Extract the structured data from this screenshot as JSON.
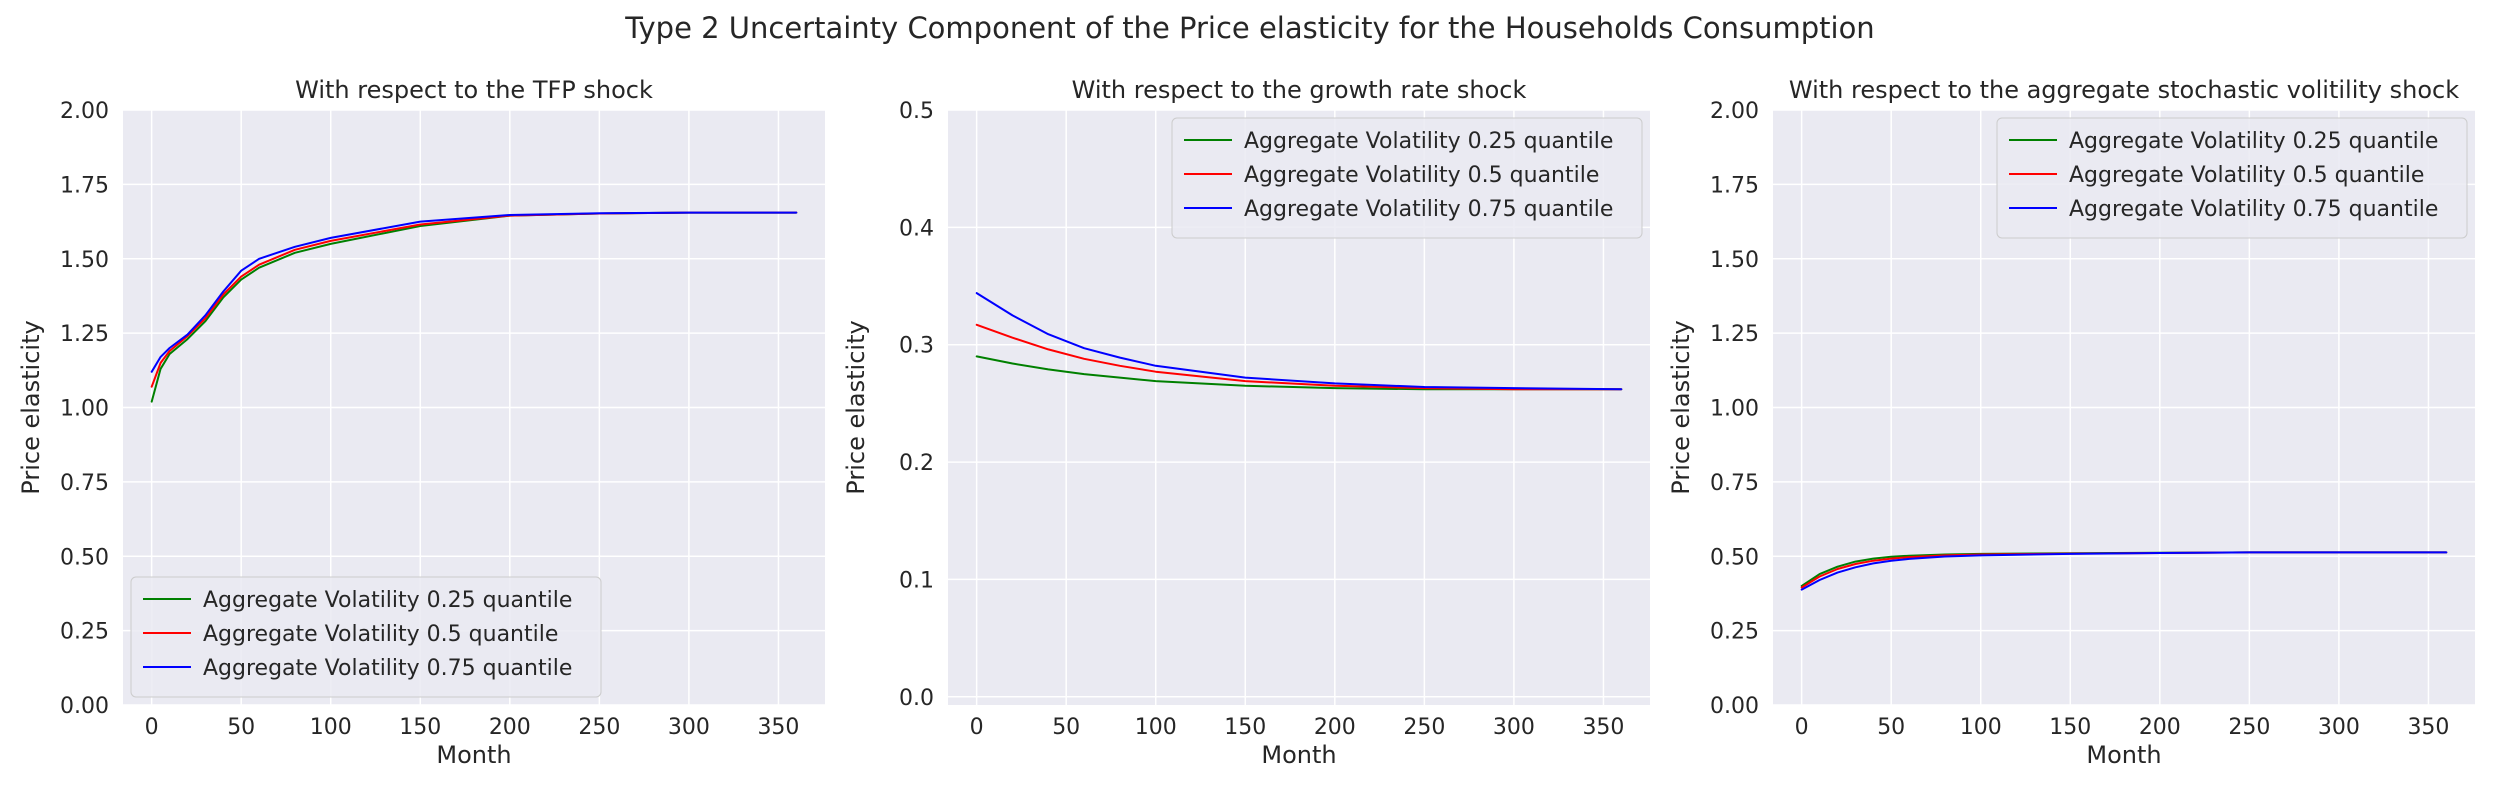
{
  "figure": {
    "suptitle": "Type 2 Uncertainty Component of the Price elasticity for the Households Consumption",
    "background": "#ffffff",
    "axes_background": "#eaeaf2",
    "grid_color": "#ffffff"
  },
  "chart_data": [
    {
      "type": "line",
      "title": "With respect to the TFP shock",
      "xlabel": "Month",
      "ylabel": "Price elasticity",
      "xlim": [
        -16,
        376
      ],
      "ylim": [
        0,
        2.0
      ],
      "xticks": [
        "0",
        "50",
        "100",
        "150",
        "200",
        "250",
        "300",
        "350"
      ],
      "yticks": [
        "0.00",
        "0.25",
        "0.50",
        "0.75",
        "1.00",
        "1.25",
        "1.50",
        "1.75",
        "2.00"
      ],
      "grid": true,
      "legend": "lower-left",
      "series": [
        {
          "name": "Aggregate Volatility 0.25 quantile",
          "color": "#008000",
          "x": [
            0,
            5,
            10,
            20,
            30,
            40,
            50,
            60,
            80,
            100,
            150,
            200,
            250,
            300,
            360
          ],
          "y": [
            1.02,
            1.13,
            1.18,
            1.23,
            1.29,
            1.37,
            1.43,
            1.47,
            1.52,
            1.55,
            1.61,
            1.645,
            1.652,
            1.655,
            1.655
          ]
        },
        {
          "name": "Aggregate Volatility 0.5 quantile",
          "color": "#ff0000",
          "x": [
            0,
            5,
            10,
            20,
            30,
            40,
            50,
            60,
            80,
            100,
            150,
            200,
            250,
            300,
            360
          ],
          "y": [
            1.07,
            1.15,
            1.19,
            1.24,
            1.3,
            1.38,
            1.44,
            1.48,
            1.53,
            1.56,
            1.615,
            1.645,
            1.652,
            1.655,
            1.655
          ]
        },
        {
          "name": "Aggregate Volatility 0.75 quantile",
          "color": "#0000ff",
          "x": [
            0,
            5,
            10,
            20,
            30,
            40,
            50,
            60,
            80,
            100,
            150,
            200,
            250,
            300,
            360
          ],
          "y": [
            1.12,
            1.17,
            1.2,
            1.245,
            1.31,
            1.39,
            1.46,
            1.5,
            1.54,
            1.57,
            1.625,
            1.647,
            1.653,
            1.655,
            1.655
          ]
        }
      ]
    },
    {
      "type": "line",
      "title": "With respect to the growth rate shock",
      "xlabel": "Month",
      "ylabel": "Price elasticity",
      "xlim": [
        -16,
        376
      ],
      "ylim": [
        -0.007,
        0.5
      ],
      "xticks": [
        "0",
        "50",
        "100",
        "150",
        "200",
        "250",
        "300",
        "350"
      ],
      "yticks": [
        "0.0",
        "0.1",
        "0.2",
        "0.3",
        "0.4",
        "0.5"
      ],
      "grid": true,
      "legend": "upper-right",
      "series": [
        {
          "name": "Aggregate Volatility 0.25 quantile",
          "color": "#008000",
          "x": [
            0,
            20,
            40,
            60,
            80,
            100,
            150,
            200,
            250,
            300,
            360
          ],
          "y": [
            0.29,
            0.284,
            0.279,
            0.275,
            0.272,
            0.269,
            0.265,
            0.263,
            0.262,
            0.262,
            0.262
          ]
        },
        {
          "name": "Aggregate Volatility 0.5 quantile",
          "color": "#ff0000",
          "x": [
            0,
            20,
            40,
            60,
            80,
            100,
            150,
            200,
            250,
            300,
            360
          ],
          "y": [
            0.317,
            0.306,
            0.296,
            0.288,
            0.282,
            0.277,
            0.269,
            0.265,
            0.263,
            0.262,
            0.262
          ]
        },
        {
          "name": "Aggregate Volatility 0.75 quantile",
          "color": "#0000ff",
          "x": [
            0,
            20,
            40,
            60,
            80,
            100,
            150,
            200,
            250,
            300,
            360
          ],
          "y": [
            0.344,
            0.325,
            0.309,
            0.297,
            0.289,
            0.282,
            0.272,
            0.267,
            0.264,
            0.263,
            0.262
          ]
        }
      ]
    },
    {
      "type": "line",
      "title": "With respect to the aggregate stochastic volitility shock",
      "xlabel": "Month",
      "ylabel": "Price elasticity",
      "xlim": [
        -16,
        376
      ],
      "ylim": [
        0,
        2.0
      ],
      "xticks": [
        "0",
        "50",
        "100",
        "150",
        "200",
        "250",
        "300",
        "350"
      ],
      "yticks": [
        "0.00",
        "0.25",
        "0.50",
        "0.75",
        "1.00",
        "1.25",
        "1.50",
        "1.75",
        "2.00"
      ],
      "grid": true,
      "legend": "upper-right",
      "series": [
        {
          "name": "Aggregate Volatility 0.25 quantile",
          "color": "#008000",
          "x": [
            0,
            10,
            20,
            30,
            40,
            50,
            60,
            80,
            100,
            150,
            200,
            250,
            300,
            360
          ],
          "y": [
            0.4,
            0.44,
            0.465,
            0.482,
            0.492,
            0.498,
            0.502,
            0.506,
            0.508,
            0.51,
            0.512,
            0.513,
            0.513,
            0.513
          ]
        },
        {
          "name": "Aggregate Volatility 0.5 quantile",
          "color": "#ff0000",
          "x": [
            0,
            10,
            20,
            30,
            40,
            50,
            60,
            80,
            100,
            150,
            200,
            250,
            300,
            360
          ],
          "y": [
            0.395,
            0.432,
            0.457,
            0.474,
            0.485,
            0.492,
            0.497,
            0.503,
            0.506,
            0.509,
            0.511,
            0.513,
            0.513,
            0.513
          ]
        },
        {
          "name": "Aggregate Volatility 0.75 quantile",
          "color": "#0000ff",
          "x": [
            0,
            10,
            20,
            30,
            40,
            50,
            60,
            80,
            100,
            150,
            200,
            250,
            300,
            360
          ],
          "y": [
            0.388,
            0.42,
            0.445,
            0.463,
            0.476,
            0.485,
            0.491,
            0.499,
            0.503,
            0.508,
            0.511,
            0.513,
            0.513,
            0.513
          ]
        }
      ]
    }
  ]
}
